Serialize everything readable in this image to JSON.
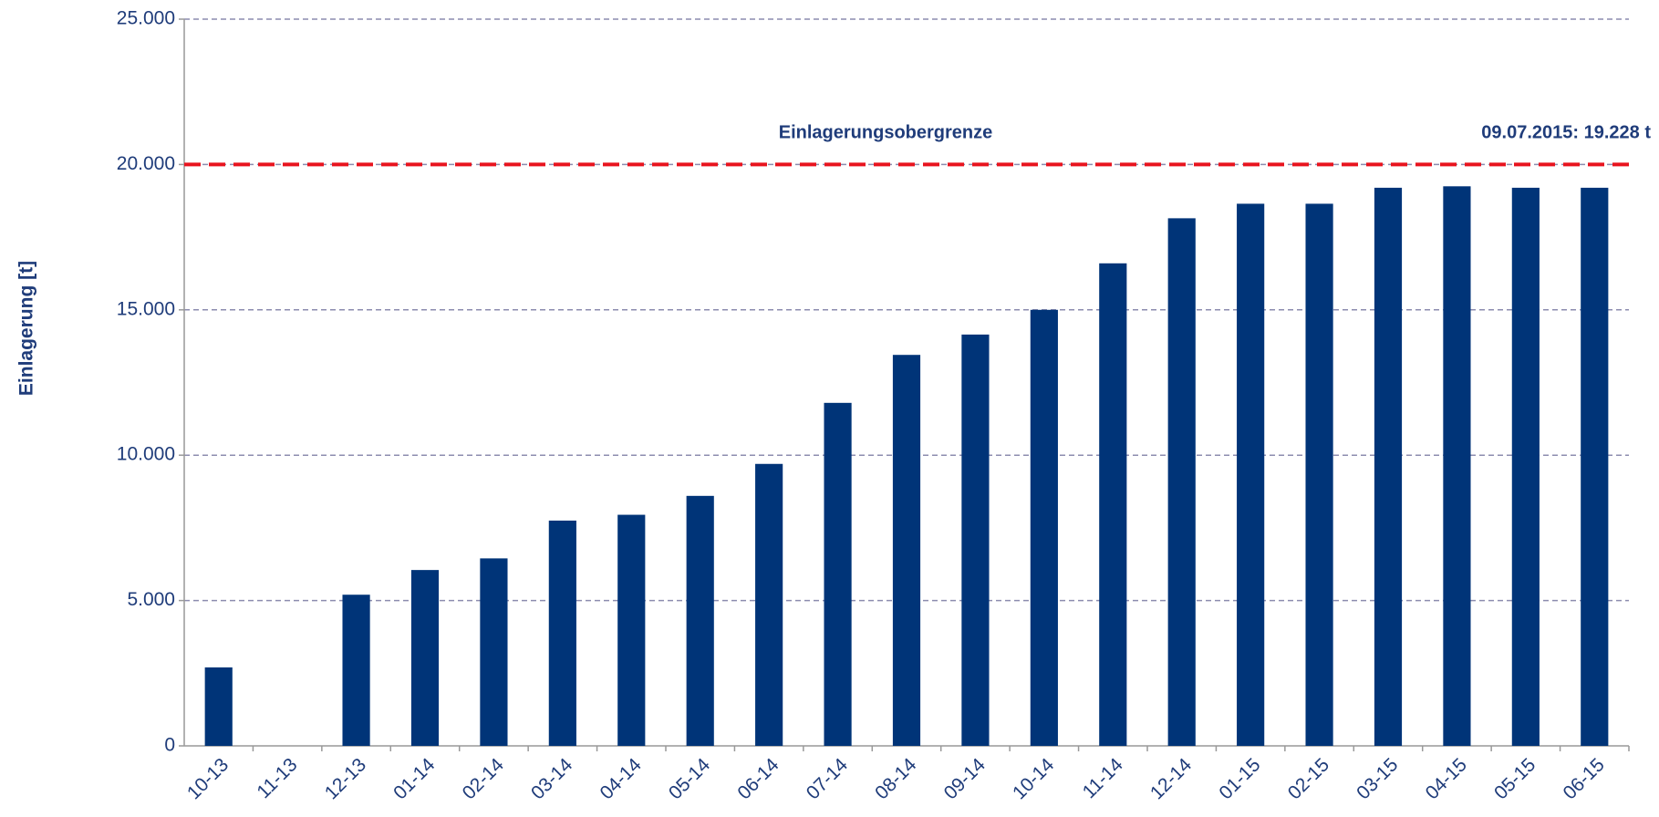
{
  "chart_data": {
    "type": "bar",
    "y_label": "Einlagerung [t]",
    "categories": [
      "10-13",
      "11-13",
      "12-13",
      "01-14",
      "02-14",
      "03-14",
      "04-14",
      "05-14",
      "06-14",
      "07-14",
      "08-14",
      "09-14",
      "10-14",
      "11-14",
      "12-14",
      "01-15",
      "02-15",
      "03-15",
      "04-15",
      "05-15",
      "06-15"
    ],
    "values": [
      2700,
      0,
      5200,
      6050,
      6450,
      7750,
      7950,
      8600,
      9700,
      11800,
      13450,
      14150,
      15000,
      16600,
      18150,
      18650,
      18650,
      19200,
      19250,
      19200,
      19200
    ],
    "color": "#003478",
    "ylim": [
      0,
      25000
    ],
    "yticks": [
      0,
      {
        "value": 5000,
        "label": "5.000"
      },
      {
        "value": 10000,
        "label": "10.000"
      },
      {
        "value": 15000,
        "label": "15.000"
      },
      {
        "value": 20000,
        "label": "20.000"
      },
      {
        "value": 25000,
        "label": "25.000"
      }
    ],
    "grid": true,
    "reference_line": {
      "value": 20000,
      "label": "Einlagerungsobergrenze",
      "color": "#e8141e"
    },
    "annotation": "09.07.2015: 19.228 t"
  }
}
